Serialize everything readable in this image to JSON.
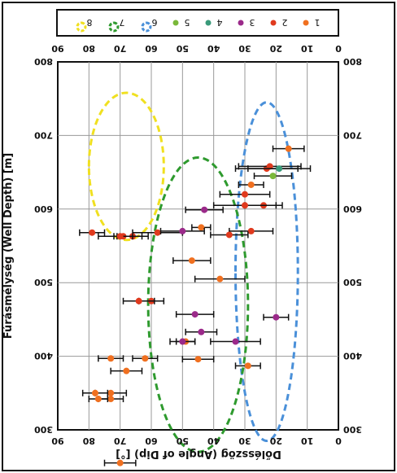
{
  "chart_data": {
    "type": "scatter",
    "note_orientation": "image is rotated 180 degrees",
    "xlabel": "Dőlésszög (Angle of Dip) [°]",
    "ylabel": "Fúrásmélység (Well Depth) [m]",
    "xlim": [
      0,
      90
    ],
    "ylim": [
      300,
      800
    ],
    "x_ticks": [
      "0",
      "10",
      "20",
      "30",
      "40",
      "50",
      "60",
      "70",
      "80",
      "90"
    ],
    "y_ticks": [
      "300",
      "400",
      "500",
      "600",
      "700",
      "800"
    ],
    "grid": true,
    "legend_position": "top",
    "legend": [
      {
        "label": "1",
        "color": "#f07020",
        "kind": "dot"
      },
      {
        "label": "2",
        "color": "#e03a1e",
        "kind": "dot"
      },
      {
        "label": "3",
        "color": "#9b2a8a",
        "kind": "dot"
      },
      {
        "label": "4",
        "color": "#3a9a7a",
        "kind": "dot"
      },
      {
        "label": "5",
        "color": "#7ab83a",
        "kind": "dot"
      },
      {
        "label": "6",
        "color": "#4a90d9",
        "kind": "ellipse"
      },
      {
        "label": "7",
        "color": "#2e9a2e",
        "kind": "ellipse"
      },
      {
        "label": "8",
        "color": "#f0e020",
        "kind": "ellipse"
      }
    ],
    "series": [
      {
        "name": "1",
        "color": "#f07020",
        "points": [
          {
            "x": 16,
            "y": 682,
            "err": 5
          },
          {
            "x": 28,
            "y": 633,
            "err": 4
          },
          {
            "x": 44,
            "y": 575,
            "err": 3
          },
          {
            "x": 47,
            "y": 530,
            "err": 6
          },
          {
            "x": 38,
            "y": 505,
            "err": 8
          },
          {
            "x": 49,
            "y": 420,
            "err": 3
          },
          {
            "x": 62,
            "y": 397,
            "err": 4
          },
          {
            "x": 73,
            "y": 397,
            "err": 4
          },
          {
            "x": 45,
            "y": 396,
            "err": 5
          },
          {
            "x": 29,
            "y": 387,
            "err": 4
          },
          {
            "x": 73,
            "y": 350,
            "err": 5
          },
          {
            "x": 78,
            "y": 350,
            "err": 4
          },
          {
            "x": 73,
            "y": 342,
            "err": 4
          },
          {
            "x": 77,
            "y": 342,
            "err": 3
          },
          {
            "x": 68,
            "y": 380,
            "err": 5
          },
          {
            "x": 70,
            "y": 255,
            "err": 5
          }
        ]
      },
      {
        "name": "2",
        "color": "#e03a1e",
        "points": [
          {
            "x": 23,
            "y": 655,
            "err": 10
          },
          {
            "x": 22,
            "y": 658,
            "err": 10
          },
          {
            "x": 30,
            "y": 620,
            "err": 8
          },
          {
            "x": 24,
            "y": 605,
            "err": 6
          },
          {
            "x": 30,
            "y": 605,
            "err": 10
          },
          {
            "x": 28,
            "y": 570,
            "err": 7
          },
          {
            "x": 35,
            "y": 565,
            "err": 6
          },
          {
            "x": 58,
            "y": 568,
            "err": 8
          },
          {
            "x": 66,
            "y": 563,
            "err": 5
          },
          {
            "x": 69,
            "y": 563,
            "err": 3
          },
          {
            "x": 70,
            "y": 563,
            "err": 7
          },
          {
            "x": 79,
            "y": 568,
            "err": 4
          },
          {
            "x": 60,
            "y": 475,
            "err": 4
          },
          {
            "x": 64,
            "y": 475,
            "err": 5
          }
        ]
      },
      {
        "name": "3",
        "color": "#9b2a8a",
        "points": [
          {
            "x": 43,
            "y": 599,
            "err": 6
          },
          {
            "x": 50,
            "y": 570,
            "err": 7
          },
          {
            "x": 20,
            "y": 453,
            "err": 4
          },
          {
            "x": 46,
            "y": 457,
            "err": 6
          },
          {
            "x": 50,
            "y": 420,
            "err": 4
          },
          {
            "x": 33,
            "y": 420,
            "err": 8
          },
          {
            "x": 44,
            "y": 433,
            "err": 5
          }
        ]
      },
      {
        "name": "4",
        "color": "#3a9a7a",
        "points": [
          {
            "x": 19,
            "y": 655,
            "err": 10
          }
        ]
      },
      {
        "name": "5",
        "color": "#7ab83a",
        "points": [
          {
            "x": 21,
            "y": 645,
            "err": 6
          }
        ]
      }
    ],
    "ellipses": [
      {
        "label": "6",
        "color": "#4a90d9",
        "cx": 23,
        "cy": 515,
        "rx": 10,
        "ry": 230
      },
      {
        "label": "7",
        "color": "#2e9a2e",
        "cx": 45,
        "cy": 470,
        "rx": 16,
        "ry": 200
      },
      {
        "label": "8",
        "color": "#f0e020",
        "cx": 68,
        "cy": 658,
        "rx": 12,
        "ry": 100
      }
    ]
  }
}
